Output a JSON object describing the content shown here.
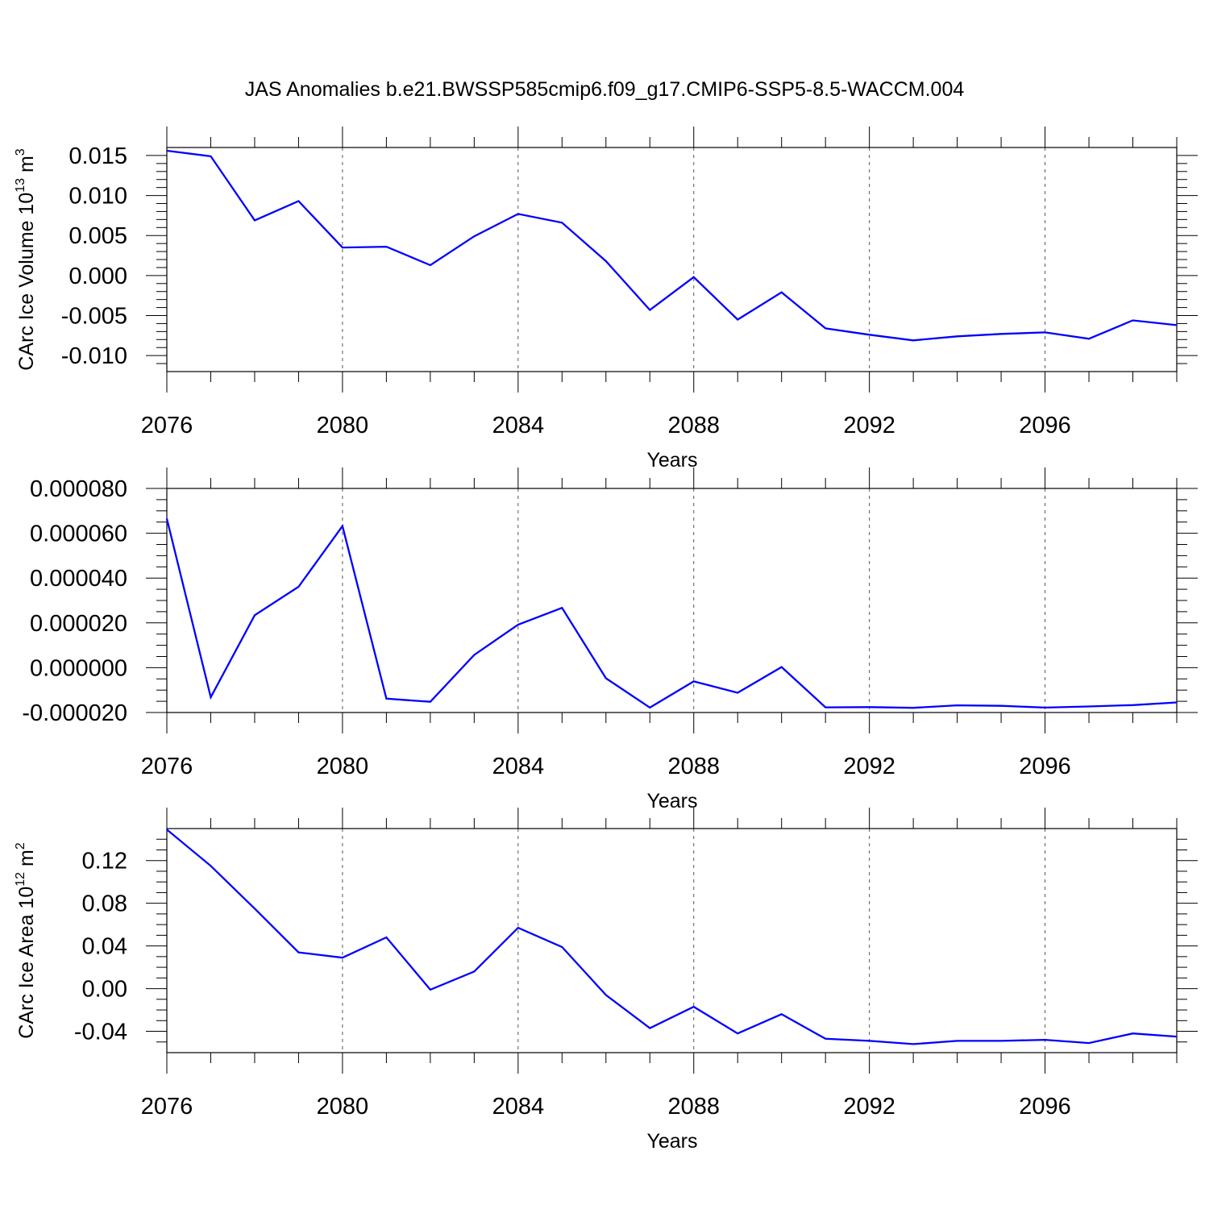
{
  "chart_data": {
    "type": "line",
    "title": "JAS Anomalies b.e21.BWSSP585cmip6.f09_g17.CMIP6-SSP5-8.5-WACCM.004",
    "xlabel": "Years",
    "xlim": [
      2076,
      2099
    ],
    "xticks": [
      2076,
      2080,
      2084,
      2088,
      2092,
      2096
    ],
    "xtick_labels": [
      "2076",
      "2080",
      "2084",
      "2088",
      "2092",
      "2096"
    ],
    "x": [
      2076,
      2077,
      2078,
      2079,
      2080,
      2081,
      2082,
      2083,
      2084,
      2085,
      2086,
      2087,
      2088,
      2089,
      2090,
      2091,
      2092,
      2093,
      2094,
      2095,
      2096,
      2097,
      2098,
      2099
    ],
    "line_color": "#0000ff",
    "grid": "dashed vertical lines at major x ticks",
    "panels": [
      {
        "ylabel_main": "CArc Ice Volume 10",
        "ylabel_sup": "13",
        "ylabel_unit": " m",
        "ylabel_unit_sup": "3",
        "ylim": [
          -0.012,
          0.016
        ],
        "yticks": [
          0.015,
          0.01,
          0.005,
          0.0,
          -0.005,
          -0.01
        ],
        "ytick_labels": [
          "0.015",
          "0.010",
          "0.005",
          "0.000",
          "-0.005",
          "-0.010"
        ],
        "yminor": [
          -0.011,
          -0.009,
          -0.008,
          -0.007,
          -0.006,
          -0.004,
          -0.003,
          -0.002,
          -0.001,
          0.001,
          0.002,
          0.003,
          0.004,
          0.006,
          0.007,
          0.008,
          0.009,
          0.011,
          0.012,
          0.013,
          0.014
        ],
        "values": [
          0.0156,
          0.0149,
          0.0069,
          0.0093,
          0.0035,
          0.0036,
          0.0013,
          0.0049,
          0.0077,
          0.0066,
          0.0018,
          -0.0043,
          -0.0002,
          -0.0055,
          -0.0021,
          -0.0066,
          -0.0074,
          -0.0081,
          -0.0076,
          -0.0073,
          -0.0071,
          -0.0079,
          -0.0056,
          -0.0062
        ]
      },
      {
        "ylabel_main": "",
        "ylabel_sup": "",
        "ylabel_unit": "",
        "ylabel_unit_sup": "",
        "ylim": [
          -2e-05,
          8e-05
        ],
        "yticks": [
          8e-05,
          6e-05,
          4e-05,
          2e-05,
          0.0,
          -2e-05
        ],
        "ytick_labels": [
          "0.000080",
          "0.000060",
          "0.000040",
          "0.000020",
          "0.000000",
          "-0.000020"
        ],
        "yminor": [
          -1.5e-05,
          -1e-05,
          -5e-06,
          5e-06,
          1e-05,
          1.5e-05,
          2.5e-05,
          3e-05,
          3.5e-05,
          4.5e-05,
          5e-05,
          5.5e-05,
          6.5e-05,
          7e-05,
          7.5e-05
        ],
        "values": [
          6.65e-05,
          -1.32e-05,
          2.34e-05,
          3.61e-05,
          6.32e-05,
          -1.38e-05,
          -1.52e-05,
          5.7e-06,
          1.92e-05,
          2.67e-05,
          -4.7e-06,
          -1.78e-05,
          -6.1e-06,
          -1.12e-05,
          3e-07,
          -1.77e-05,
          -1.76e-05,
          -1.79e-05,
          -1.68e-05,
          -1.7e-05,
          -1.78e-05,
          -1.73e-05,
          -1.67e-05,
          -1.55e-05
        ]
      },
      {
        "ylabel_main": "CArc Ice Area 10",
        "ylabel_sup": "12",
        "ylabel_unit": " m",
        "ylabel_unit_sup": "2",
        "ylim": [
          -0.06,
          0.15
        ],
        "yticks": [
          0.12,
          0.08,
          0.04,
          0.0,
          -0.04
        ],
        "ytick_labels": [
          "0.12",
          "0.08",
          "0.04",
          "0.00",
          "-0.04"
        ],
        "yminor": [
          -0.05,
          -0.03,
          -0.02,
          -0.01,
          0.01,
          0.02,
          0.03,
          0.05,
          0.06,
          0.07,
          0.09,
          0.1,
          0.11,
          0.13,
          0.14
        ],
        "values": [
          0.149,
          0.115,
          0.075,
          0.034,
          0.029,
          0.048,
          -0.001,
          0.016,
          0.057,
          0.039,
          -0.006,
          -0.037,
          -0.017,
          -0.042,
          -0.024,
          -0.047,
          -0.049,
          -0.052,
          -0.049,
          -0.049,
          -0.048,
          -0.051,
          -0.042,
          -0.045
        ]
      }
    ]
  }
}
